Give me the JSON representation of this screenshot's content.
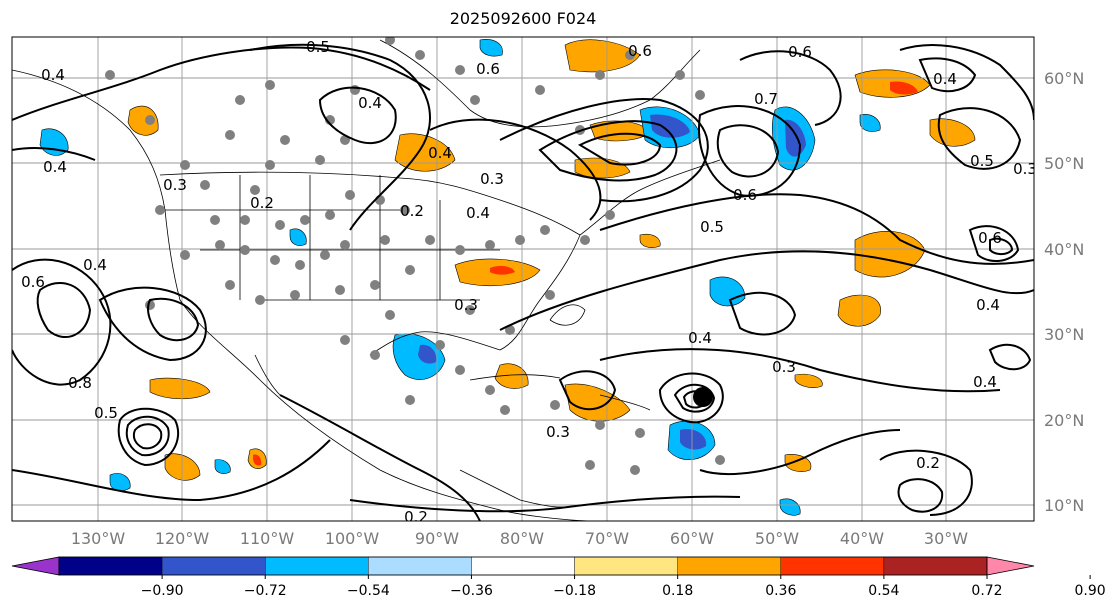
{
  "title": "2025092600 F024",
  "lat_labels": [
    "60°N",
    "50°N",
    "40°N",
    "30°N",
    "20°N",
    "10°N"
  ],
  "lon_labels": [
    "130°W",
    "120°W",
    "110°W",
    "100°W",
    "90°W",
    "80°W",
    "70°W",
    "60°W",
    "50°W",
    "40°W",
    "30°W"
  ],
  "colorbar": {
    "ticks": [
      "−0.90",
      "−0.72",
      "−0.54",
      "−0.36",
      "−0.18",
      "0.18",
      "0.36",
      "0.54",
      "0.72",
      "0.90"
    ],
    "colors": [
      "#9933cc",
      "#000088",
      "#3355cc",
      "#00bbff",
      "#aaddff",
      "#ffffff",
      "#ffe680",
      "#ffa500",
      "#ff3300",
      "#aa2222",
      "#ff88aa"
    ]
  },
  "contour_labels": [
    "0.5",
    "0.6",
    "0.4",
    "0.4",
    "0.4",
    "0.3",
    "0.3",
    "0.2",
    "0.6",
    "0.5",
    "0.4",
    "0.6",
    "0.4",
    "0.3",
    "0.4",
    "0.3",
    "0.2",
    "0.2",
    "0.4",
    "0.6",
    "0.8",
    "0.5",
    "0.4",
    "0.3",
    "0.5",
    "0.6",
    "0.4",
    "0.7",
    "0.4",
    "0.6",
    "0.2",
    "0.3"
  ]
}
